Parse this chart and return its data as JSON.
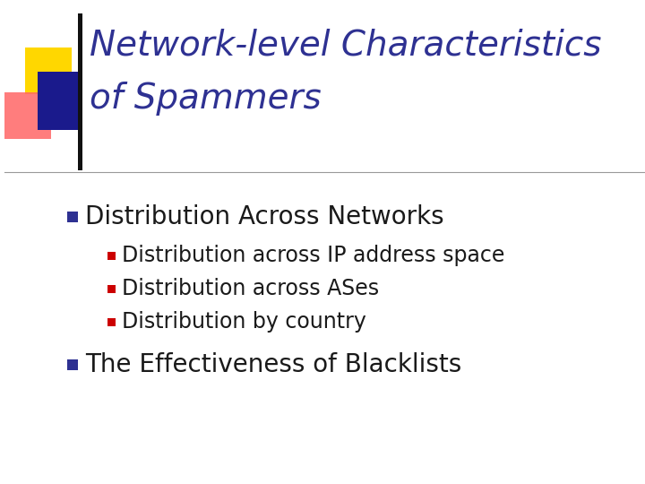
{
  "title_line1": "Network-level Characteristics",
  "title_line2": "of Spammers",
  "title_color": "#2E3192",
  "title_fontsize": 28,
  "background_color": "#FFFFFF",
  "bullet1": "Distribution Across Networks",
  "bullet1_color": "#1a1a1a",
  "bullet1_fontsize": 20,
  "bullet1_marker_color": "#2E3192",
  "subbullets": [
    "Distribution across IP address space",
    "Distribution across ASes",
    "Distribution by country"
  ],
  "subbullet_color": "#1a1a1a",
  "subbullet_fontsize": 17,
  "subbullet_marker_color": "#CC0000",
  "bullet2": "The Effectiveness of Blacklists",
  "bullet2_color": "#1a1a1a",
  "bullet2_fontsize": 20,
  "bullet2_marker_color": "#2E3192",
  "separator_color": "#999999",
  "logo_yellow": "#FFD700",
  "logo_blue": "#1a1a8c",
  "logo_blue_rect": "#3333aa",
  "logo_red": "#FF6666",
  "logo_red_alpha": 0.85
}
